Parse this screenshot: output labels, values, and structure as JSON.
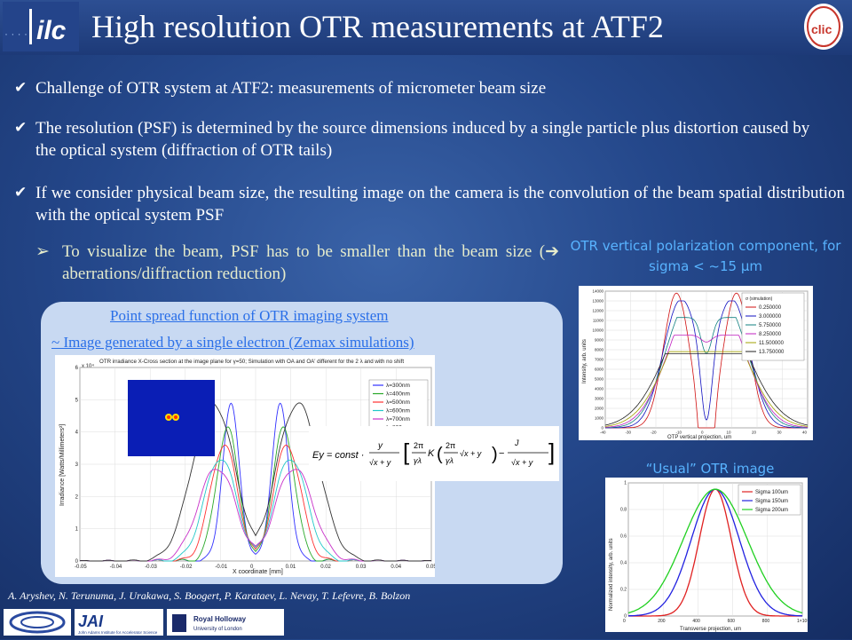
{
  "header": {
    "title": "High resolution OTR measurements at ATF2",
    "ilc_logo": "ilc",
    "clic_logo": "clic"
  },
  "bullets": [
    "Challenge of OTR system at ATF2: measurements of micrometer beam size",
    "The resolution (PSF) is determined by the source dimensions induced by a single particle plus distortion caused by the optical system (diffraction of OTR tails)",
    "If we consider physical beam size, the resulting image on the camera is the convolution of the beam spatial distribution with the optical system PSF"
  ],
  "sub_bullet": {
    "arrow": "➢",
    "text": "To visualize the beam, PSF has to be smaller than the beam size (",
    "arrow2": "➔",
    "text2": " aberrations/diffraction reduction)"
  },
  "right_caption_top": "OTR vertical polarization component, for sigma < ~15 µm",
  "right_caption_bottom": "“Usual” OTR image",
  "panel": {
    "title": "Point spread function of  OTR imaging system",
    "subtitle": "~ Image generated by a single electron (Zemax simulations)"
  },
  "formula": {
    "lhs": "Ey = const ·",
    "frac1_num": "y",
    "frac1_den": "√x + y",
    "frac2_num": "2π",
    "frac2_den": "γλ",
    "k": "K",
    "sqrt": "√x + y",
    "j": "J",
    "j_den": "√x + y"
  },
  "chart_data": [
    {
      "type": "line",
      "title": "OTR irradiance X-Cross section at the image plane for γ=50; Simulation with OA and OA' different for the 2 λ and with no shift",
      "xlabel": "X coordinate [mm]",
      "ylabel": "Irradiance [Watts/Millimeters²]",
      "y_multiplier": "x 10⁴",
      "xlim": [
        -0.05,
        0.05
      ],
      "ylim": [
        0,
        6
      ],
      "x_ticks": [
        "-0.05",
        "-0.04",
        "-0.03",
        "-0.02",
        "-0.01",
        "0",
        "0.01",
        "0.02",
        "0.03",
        "0.04",
        "0.05"
      ],
      "y_ticks": [
        "0",
        "1",
        "2",
        "3",
        "4",
        "5",
        "6"
      ],
      "series": [
        {
          "name": "λ=300nm",
          "color": "#3030ff",
          "peak_x": 0.007,
          "peak": 4.8,
          "width": 0.0035,
          "dip": 0.5
        },
        {
          "name": "λ=400nm",
          "color": "#28a828",
          "peak_x": 0.008,
          "peak": 4.1,
          "width": 0.0045,
          "dip": 0.6
        },
        {
          "name": "λ=500nm",
          "color": "#ff3030",
          "peak_x": 0.009,
          "peak": 3.6,
          "width": 0.0055,
          "dip": 0.7
        },
        {
          "name": "λ=600nm",
          "color": "#20c8c8",
          "peak_x": 0.01,
          "peak": 3.2,
          "width": 0.0065,
          "dip": 0.8
        },
        {
          "name": "λ=700nm",
          "color": "#c830c8",
          "peak_x": 0.011,
          "peak": 2.9,
          "width": 0.0075,
          "dip": 0.9
        },
        {
          "name": "λ=800nm",
          "color": "#333333",
          "peak_x": 0.012,
          "peak": 4.9,
          "width": 0.0085,
          "dip": 1.0
        }
      ]
    },
    {
      "type": "line",
      "xlabel": "OTP vertical projection, um",
      "ylabel": "Intensity, arb. units",
      "xlim": [
        -40,
        40
      ],
      "ylim": [
        0,
        14000
      ],
      "x_ticks": [
        "-40",
        "-30",
        "-20",
        "-10",
        "0",
        "10",
        "20",
        "30",
        "40"
      ],
      "y_ticks": [
        "0",
        "1000",
        "2000",
        "3000",
        "4000",
        "5000",
        "6000",
        "7000",
        "8000",
        "9000",
        "10000",
        "11000",
        "12000",
        "13000",
        "14000"
      ],
      "legend_title": "σ (simulation)",
      "series": [
        {
          "name": "0.250000",
          "color": "#d01010",
          "peak": 13800,
          "sigma": 0.25
        },
        {
          "name": "3.000000",
          "color": "#1010c0",
          "peak": 13000,
          "sigma": 3.0
        },
        {
          "name": "5.750000",
          "color": "#108080",
          "peak": 11300,
          "sigma": 5.75
        },
        {
          "name": "8.250000",
          "color": "#c020c0",
          "peak": 9500,
          "sigma": 8.25
        },
        {
          "name": "11.500000",
          "color": "#a0a000",
          "peak": 7800,
          "sigma": 11.5
        },
        {
          "name": "13.750000",
          "color": "#202020",
          "peak": 7600,
          "sigma": 13.75
        }
      ]
    },
    {
      "type": "line",
      "xlabel": "Transverse projection, um",
      "ylabel": "Normalized intensity, arb. units",
      "xlim": [
        0,
        1000
      ],
      "ylim": [
        0,
        1.05
      ],
      "x_ticks": [
        "0",
        "200",
        "400",
        "600",
        "800",
        "1×10³"
      ],
      "y_ticks": [
        "0",
        "0.2",
        "0.4",
        "0.6",
        "0.8",
        "1"
      ],
      "series": [
        {
          "name": "Sigma 100um",
          "color": "#e02020",
          "center": 500,
          "sigma": 100
        },
        {
          "name": "Sigma 150um",
          "color": "#2020e0",
          "center": 500,
          "sigma": 150
        },
        {
          "name": "Sigma 200um",
          "color": "#20d020",
          "center": 500,
          "sigma": 200
        }
      ]
    }
  ],
  "authors": "A. Aryshev, N. Terunuma, J. Urakawa, S. Boogert, P. Karataev, L. Nevay, T. Lefevre, B. Bolzon",
  "footer": {
    "jai_name": "JAI",
    "jai_sub": "John Adams Institute for Accelerator Science",
    "rhul_name": "Royal Holloway",
    "rhul_sub": "University of London"
  },
  "colors": {
    "accent": "#58b3ff",
    "sub_text": "#e6eccc",
    "link": "#2a6fe8"
  }
}
